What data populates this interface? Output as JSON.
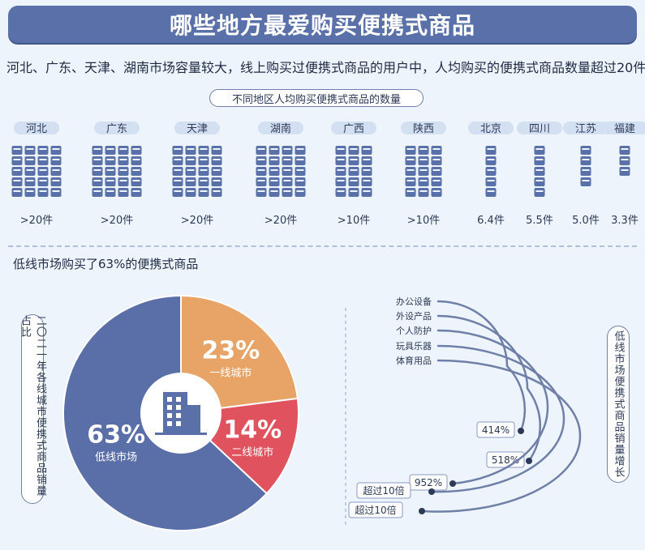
{
  "banner": {
    "title": "哪些地方最爱购买便携式商品"
  },
  "intro": "河北、广东、天津、湖南市场容量较大，线上购买过便携式商品的用户中，人均购买的便携式商品数量超过20件",
  "regions_chart": {
    "title": "不同地区人均购买便携式商品的数量"
  },
  "pie_section": {
    "title": "低线市场购买了63%的便携式商品",
    "side_label": "二〇二一年各线城市便携式商品销量占比"
  },
  "arcs_section": {
    "side_label": "低线市场便携式商品销量增长"
  },
  "colors": {
    "banner": "#5a70a8",
    "icon": "#5a70a8",
    "low_tier": "#5a6fa8",
    "tier1": "#e8a467",
    "tier2": "#e0525e"
  },
  "chart_data": [
    {
      "type": "pictogram",
      "title": "不同地区人均购买便携式商品的数量",
      "categories": [
        "河北",
        "广东",
        "天津",
        "湖南",
        "广西",
        "陕西",
        "北京",
        "四川",
        "江苏",
        "福建"
      ],
      "values": [
        20,
        20,
        20,
        20,
        10,
        10,
        6.4,
        5.5,
        5.0,
        3.3
      ],
      "value_labels": [
        ">20件",
        ">20件",
        ">20件",
        ">20件",
        ">10件",
        ">10件",
        "6.4件",
        "5.5件",
        "5.0件",
        "3.3件"
      ]
    },
    {
      "type": "pie",
      "title": "二〇二一年各线城市便携式商品销量占比",
      "slices": [
        {
          "label": "一线城市",
          "value": 23,
          "value_label": "23%",
          "color": "#e8a467"
        },
        {
          "label": "二线城市",
          "value": 14,
          "value_label": "14%",
          "color": "#e0525e"
        },
        {
          "label": "低线市场",
          "value": 63,
          "value_label": "63%",
          "color": "#5a6fa8"
        }
      ]
    },
    {
      "type": "radial_bar",
      "title": "低线市场便携式商品销量增长",
      "categories": [
        "办公设备",
        "外设产品",
        "个人防护",
        "玩具乐器",
        "体育用品"
      ],
      "value_labels": [
        "414%",
        "518%",
        "952%",
        "超过10倍",
        "超过10倍"
      ]
    }
  ]
}
